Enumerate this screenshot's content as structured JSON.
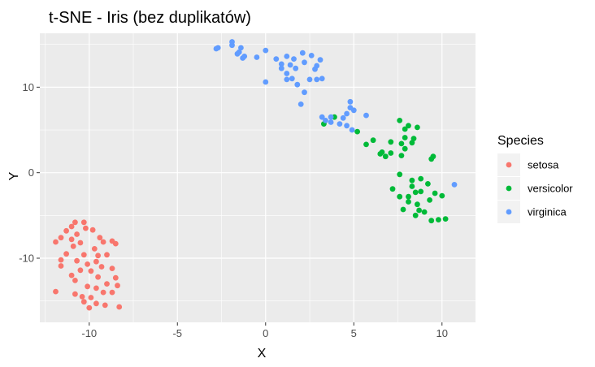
{
  "chart_data": {
    "type": "scatter",
    "title": "t-SNE - Iris (bez duplikatów)",
    "xlabel": "X",
    "ylabel": "Y",
    "xlim": [
      -12.8,
      11.9
    ],
    "ylim": [
      -17.5,
      16.3
    ],
    "x_ticks": [
      -10,
      -5,
      0,
      5,
      10
    ],
    "y_ticks": [
      -10,
      0,
      10
    ],
    "x_tick_labels": [
      "-10",
      "-5",
      "0",
      "5",
      "10"
    ],
    "y_tick_labels": [
      "-10",
      "0",
      "10"
    ],
    "grid": true,
    "legend": {
      "title": "Species",
      "position": "right"
    },
    "series": [
      {
        "name": "setosa",
        "color": "#F8766D",
        "points": [
          [
            -10.8,
            -5.8
          ],
          [
            -10.3,
            -5.8
          ],
          [
            -11.0,
            -6.3
          ],
          [
            -10.2,
            -6.5
          ],
          [
            -11.3,
            -6.8
          ],
          [
            -9.8,
            -6.7
          ],
          [
            -10.7,
            -7.2
          ],
          [
            -11.6,
            -7.6
          ],
          [
            -11.0,
            -7.8
          ],
          [
            -11.9,
            -8.1
          ],
          [
            -10.5,
            -8.2
          ],
          [
            -9.4,
            -7.6
          ],
          [
            -9.2,
            -8.1
          ],
          [
            -8.7,
            -8.0
          ],
          [
            -8.5,
            -8.3
          ],
          [
            -10.9,
            -8.6
          ],
          [
            -9.7,
            -8.9
          ],
          [
            -11.3,
            -9.5
          ],
          [
            -10.3,
            -9.6
          ],
          [
            -9.5,
            -9.7
          ],
          [
            -9.0,
            -9.6
          ],
          [
            -11.6,
            -10.2
          ],
          [
            -10.7,
            -10.3
          ],
          [
            -10.1,
            -10.7
          ],
          [
            -9.6,
            -10.4
          ],
          [
            -11.6,
            -10.9
          ],
          [
            -9.3,
            -11.0
          ],
          [
            -8.7,
            -11.2
          ],
          [
            -10.5,
            -11.4
          ],
          [
            -9.9,
            -11.5
          ],
          [
            -11.0,
            -12.0
          ],
          [
            -9.5,
            -12.2
          ],
          [
            -10.8,
            -12.6
          ],
          [
            -8.5,
            -12.3
          ],
          [
            -9.0,
            -13.0
          ],
          [
            -8.4,
            -13.2
          ],
          [
            -10.1,
            -13.3
          ],
          [
            -9.6,
            -13.5
          ],
          [
            -11.9,
            -13.9
          ],
          [
            -10.8,
            -14.2
          ],
          [
            -9.2,
            -14.0
          ],
          [
            -8.7,
            -14.0
          ],
          [
            -10.4,
            -14.5
          ],
          [
            -9.9,
            -14.6
          ],
          [
            -10.3,
            -15.1
          ],
          [
            -9.6,
            -15.3
          ],
          [
            -9.1,
            -15.5
          ],
          [
            -8.3,
            -15.7
          ],
          [
            -10.0,
            -15.8
          ]
        ]
      },
      {
        "name": "versicolor",
        "color": "#00BA38",
        "points": [
          [
            3.3,
            5.7
          ],
          [
            3.9,
            6.5
          ],
          [
            5.2,
            4.8
          ],
          [
            5.7,
            3.3
          ],
          [
            6.1,
            3.8
          ],
          [
            6.6,
            2.4
          ],
          [
            6.8,
            1.9
          ],
          [
            6.5,
            2.2
          ],
          [
            7.1,
            2.3
          ],
          [
            7.1,
            3.6
          ],
          [
            7.7,
            3.4
          ],
          [
            7.6,
            6.1
          ],
          [
            7.9,
            5.1
          ],
          [
            8.1,
            5.5
          ],
          [
            7.9,
            4.1
          ],
          [
            8.3,
            3.5
          ],
          [
            8.4,
            4.0
          ],
          [
            8.6,
            5.3
          ],
          [
            7.9,
            2.8
          ],
          [
            7.7,
            2.0
          ],
          [
            9.5,
            1.9
          ],
          [
            9.4,
            1.6
          ],
          [
            7.6,
            -0.2
          ],
          [
            8.3,
            -0.9
          ],
          [
            8.8,
            -0.7
          ],
          [
            8.3,
            -1.6
          ],
          [
            9.2,
            -1.3
          ],
          [
            8.5,
            -2.3
          ],
          [
            7.6,
            -2.8
          ],
          [
            8.1,
            -2.8
          ],
          [
            7.2,
            -1.9
          ],
          [
            8.8,
            -2.2
          ],
          [
            9.6,
            -2.4
          ],
          [
            8.1,
            -3.4
          ],
          [
            9.3,
            -3.2
          ],
          [
            10.0,
            -2.7
          ],
          [
            8.6,
            -3.7
          ],
          [
            7.8,
            -4.3
          ],
          [
            8.7,
            -4.4
          ],
          [
            9.0,
            -4.6
          ],
          [
            8.5,
            -5.0
          ],
          [
            9.4,
            -5.6
          ],
          [
            9.8,
            -5.5
          ],
          [
            10.2,
            -5.4
          ]
        ]
      },
      {
        "name": "virginica",
        "color": "#619CFF",
        "points": [
          [
            -2.8,
            14.5
          ],
          [
            -2.7,
            14.6
          ],
          [
            -1.9,
            15.3
          ],
          [
            -1.9,
            14.9
          ],
          [
            -1.4,
            14.6
          ],
          [
            -1.5,
            14.1
          ],
          [
            -1.6,
            13.9
          ],
          [
            -1.3,
            13.4
          ],
          [
            -1.2,
            13.6
          ],
          [
            -0.5,
            13.5
          ],
          [
            0.0,
            14.3
          ],
          [
            0.0,
            10.6
          ],
          [
            0.6,
            13.3
          ],
          [
            0.9,
            12.7
          ],
          [
            1.2,
            13.6
          ],
          [
            1.4,
            12.6
          ],
          [
            1.6,
            13.3
          ],
          [
            2.1,
            14.0
          ],
          [
            1.7,
            12.2
          ],
          [
            2.6,
            13.7
          ],
          [
            2.2,
            12.9
          ],
          [
            3.1,
            13.2
          ],
          [
            2.9,
            12.5
          ],
          [
            2.8,
            12.1
          ],
          [
            0.9,
            12.2
          ],
          [
            1.2,
            11.6
          ],
          [
            1.2,
            10.9
          ],
          [
            1.5,
            11.0
          ],
          [
            1.8,
            10.3
          ],
          [
            2.5,
            10.9
          ],
          [
            2.9,
            10.9
          ],
          [
            3.2,
            11.0
          ],
          [
            2.2,
            9.4
          ],
          [
            2.0,
            8.0
          ],
          [
            3.2,
            6.5
          ],
          [
            3.4,
            6.1
          ],
          [
            3.7,
            5.9
          ],
          [
            3.7,
            6.5
          ],
          [
            4.2,
            5.7
          ],
          [
            4.4,
            6.4
          ],
          [
            4.6,
            6.9
          ],
          [
            4.8,
            7.6
          ],
          [
            4.8,
            8.3
          ],
          [
            5.0,
            7.3
          ],
          [
            4.6,
            5.5
          ],
          [
            4.9,
            5.0
          ],
          [
            5.7,
            6.7
          ],
          [
            10.7,
            -1.4
          ]
        ]
      }
    ]
  }
}
